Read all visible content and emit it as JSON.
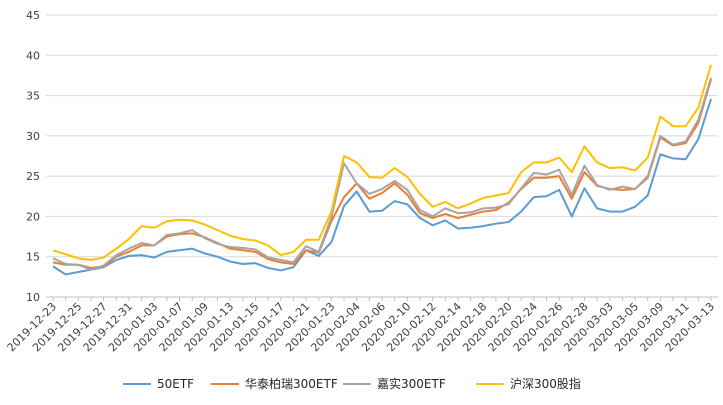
{
  "chart_data": {
    "type": "line",
    "title": "",
    "xlabel": "",
    "ylabel": "",
    "ylim": [
      10,
      45
    ],
    "yticks": [
      10,
      15,
      20,
      25,
      30,
      35,
      40,
      45
    ],
    "grid": true,
    "legend_position": "bottom",
    "x": [
      "2019-12-23",
      "2019-12-24",
      "2019-12-25",
      "2019-12-26",
      "2019-12-27",
      "2019-12-30",
      "2019-12-31",
      "2020-01-02",
      "2020-01-03",
      "2020-01-06",
      "2020-01-07",
      "2020-01-08",
      "2020-01-09",
      "2020-01-10",
      "2020-01-13",
      "2020-01-14",
      "2020-01-15",
      "2020-01-16",
      "2020-01-17",
      "2020-01-20",
      "2020-01-21",
      "2020-01-22",
      "2020-01-23",
      "2020-02-03",
      "2020-02-04",
      "2020-02-05",
      "2020-02-06",
      "2020-02-07",
      "2020-02-10",
      "2020-02-11",
      "2020-02-12",
      "2020-02-13",
      "2020-02-14",
      "2020-02-17",
      "2020-02-18",
      "2020-02-19",
      "2020-02-20",
      "2020-02-21",
      "2020-02-24",
      "2020-02-25",
      "2020-02-26",
      "2020-02-27",
      "2020-02-28",
      "2020-03-02",
      "2020-03-03",
      "2020-03-04",
      "2020-03-05",
      "2020-03-06",
      "2020-03-09",
      "2020-03-10",
      "2020-03-11",
      "2020-03-12",
      "2020-03-13"
    ],
    "x_tick_labels": [
      "2019-12-23",
      "2019-12-25",
      "2019-12-27",
      "2019-12-31",
      "2020-01-03",
      "2020-01-07",
      "2020-01-09",
      "2020-01-13",
      "2020-01-15",
      "2020-01-17",
      "2020-01-21",
      "2020-01-23",
      "2020-02-04",
      "2020-02-06",
      "2020-02-10",
      "2020-02-12",
      "2020-02-14",
      "2020-02-18",
      "2020-02-20",
      "2020-02-24",
      "2020-02-26",
      "2020-02-28",
      "2020-03-03",
      "2020-03-05",
      "2020-03-09",
      "2020-03-11",
      "2020-03-13"
    ],
    "series": [
      {
        "name": "50ETF",
        "color": "#5B9BD5",
        "values": [
          13.8,
          12.8,
          13.1,
          13.4,
          13.7,
          14.6,
          15.1,
          15.2,
          14.9,
          15.6,
          15.8,
          16.0,
          15.4,
          15.0,
          14.4,
          14.1,
          14.2,
          13.6,
          13.3,
          13.7,
          15.8,
          15.1,
          16.8,
          21.3,
          23.1,
          20.6,
          20.7,
          21.9,
          21.5,
          19.8,
          18.9,
          19.5,
          18.5,
          18.6,
          18.8,
          19.1,
          19.3,
          20.6,
          22.4,
          22.5,
          23.3,
          20.0,
          23.5,
          21.0,
          20.6,
          20.6,
          21.2,
          22.6,
          27.7,
          27.2,
          27.1,
          29.6,
          34.6
        ]
      },
      {
        "name": "华泰柏瑞300ETF",
        "color": "#ED7D31",
        "values": [
          14.3,
          14.0,
          14.0,
          13.6,
          13.8,
          15.0,
          15.6,
          16.4,
          16.4,
          17.5,
          17.8,
          17.9,
          17.4,
          16.7,
          16.0,
          15.8,
          15.6,
          14.7,
          14.3,
          14.1,
          15.8,
          15.5,
          19.4,
          22.4,
          24.1,
          22.2,
          22.9,
          24.1,
          22.7,
          20.4,
          19.8,
          20.3,
          19.8,
          20.2,
          20.6,
          20.8,
          21.7,
          23.4,
          24.8,
          24.8,
          25.0,
          22.2,
          25.5,
          23.8,
          23.4,
          23.3,
          23.4,
          24.8,
          29.8,
          28.8,
          29.1,
          31.6,
          37.0
        ]
      },
      {
        "name": "嘉实300ETF",
        "color": "#A5A5A5",
        "values": [
          14.8,
          14.1,
          14.0,
          13.4,
          13.9,
          15.2,
          16.0,
          16.7,
          16.4,
          17.7,
          17.9,
          18.3,
          17.3,
          16.6,
          16.2,
          16.1,
          15.9,
          14.9,
          14.6,
          14.3,
          16.3,
          15.6,
          19.9,
          26.6,
          24.1,
          22.8,
          23.4,
          24.4,
          23.3,
          20.8,
          20.0,
          21.0,
          20.4,
          20.5,
          21.0,
          21.1,
          21.5,
          23.5,
          25.4,
          25.2,
          25.8,
          22.7,
          26.3,
          23.9,
          23.3,
          23.7,
          23.4,
          25.0,
          30.0,
          28.9,
          29.3,
          32.0,
          37.2
        ]
      },
      {
        "name": "沪深300股指",
        "color": "#FFC000",
        "values": [
          15.8,
          15.3,
          14.8,
          14.6,
          14.9,
          16.0,
          17.2,
          18.8,
          18.6,
          19.4,
          19.6,
          19.5,
          19.0,
          18.3,
          17.6,
          17.2,
          17.0,
          16.4,
          15.2,
          15.6,
          17.1,
          17.1,
          20.6,
          27.5,
          26.7,
          24.9,
          24.8,
          26.0,
          24.9,
          22.8,
          21.2,
          21.8,
          21.0,
          21.6,
          22.3,
          22.6,
          22.9,
          25.5,
          26.7,
          26.7,
          27.3,
          25.5,
          28.7,
          26.7,
          26.0,
          26.1,
          25.7,
          27.3,
          32.4,
          31.2,
          31.2,
          33.5,
          38.8
        ]
      }
    ]
  }
}
